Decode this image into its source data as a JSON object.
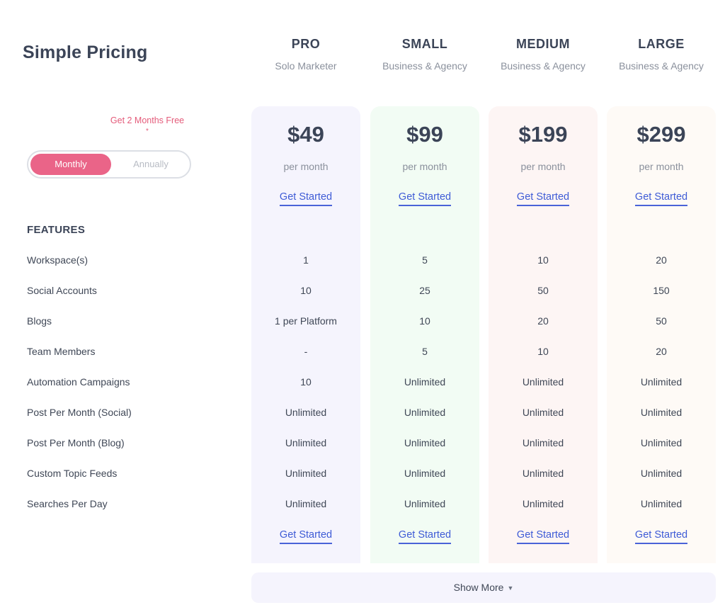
{
  "page_title": "Simple Pricing",
  "promo_text": "Get 2 Months Free",
  "promo_mark": "*",
  "billing_toggle": {
    "monthly": "Monthly",
    "annually": "Annually",
    "selected": "Monthly"
  },
  "features_heading": "FEATURES",
  "plans": [
    {
      "name": "PRO",
      "subtitle": "Solo Marketer",
      "price": "$49",
      "period": "per month",
      "cta": "Get Started",
      "color": "#f5f4fd"
    },
    {
      "name": "SMALL",
      "subtitle": "Business & Agency",
      "price": "$99",
      "period": "per month",
      "cta": "Get Started",
      "color": "#f2fcf4"
    },
    {
      "name": "MEDIUM",
      "subtitle": "Business & Agency",
      "price": "$199",
      "period": "per month",
      "cta": "Get Started",
      "color": "#fdf5f4"
    },
    {
      "name": "LARGE",
      "subtitle": "Business & Agency",
      "price": "$299",
      "period": "per month",
      "cta": "Get Started",
      "color": "#fefaf6"
    }
  ],
  "features": [
    {
      "label": "Workspace(s)",
      "values": [
        "1",
        "5",
        "10",
        "20"
      ]
    },
    {
      "label": "Social Accounts",
      "values": [
        "10",
        "25",
        "50",
        "150"
      ]
    },
    {
      "label": "Blogs",
      "values": [
        "1 per Platform",
        "10",
        "20",
        "50"
      ]
    },
    {
      "label": "Team Members",
      "values": [
        "-",
        "5",
        "10",
        "20"
      ]
    },
    {
      "label": "Automation Campaigns",
      "values": [
        "10",
        "Unlimited",
        "Unlimited",
        "Unlimited"
      ]
    },
    {
      "label": "Post Per Month (Social)",
      "values": [
        "Unlimited",
        "Unlimited",
        "Unlimited",
        "Unlimited"
      ]
    },
    {
      "label": "Post Per Month (Blog)",
      "values": [
        "Unlimited",
        "Unlimited",
        "Unlimited",
        "Unlimited"
      ]
    },
    {
      "label": "Custom Topic Feeds",
      "values": [
        "Unlimited",
        "Unlimited",
        "Unlimited",
        "Unlimited"
      ]
    },
    {
      "label": "Searches Per Day",
      "values": [
        "Unlimited",
        "Unlimited",
        "Unlimited",
        "Unlimited"
      ]
    }
  ],
  "show_more": "Show More",
  "show_more_icon": "caret-down-icon",
  "colors": {
    "accent_pink": "#ea6488",
    "link_blue": "#3e5bd6",
    "promo_pink": "#e45b7a"
  }
}
